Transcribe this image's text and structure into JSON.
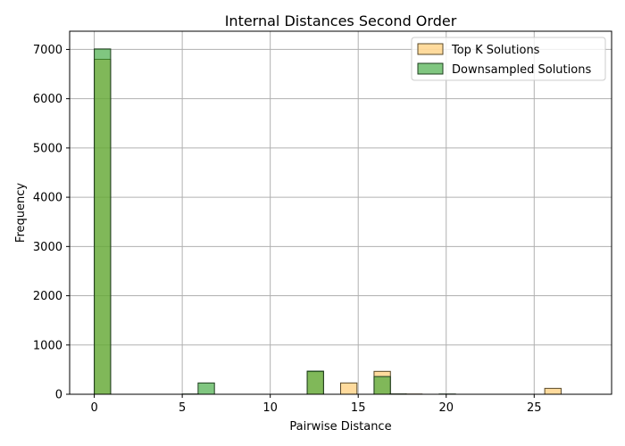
{
  "chart_data": {
    "type": "bar",
    "title": "Internal Distances Second Order",
    "xlabel": "Pairwise Distance",
    "ylabel": "Frequency",
    "xlim": [
      -1.4,
      29.4
    ],
    "ylim": [
      0,
      7370
    ],
    "x_ticks": [
      0,
      5,
      10,
      15,
      20,
      25
    ],
    "y_ticks": [
      0,
      1000,
      2000,
      3000,
      4000,
      5000,
      6000,
      7000
    ],
    "grid": true,
    "legend_position": "top-right",
    "bin_width": 0.93,
    "series": [
      {
        "name": "Top K Solutions",
        "color": "#ffc35c",
        "edge_color": "#5a4a2a",
        "bins": [
          {
            "x0": 0.0,
            "value": 6800
          },
          {
            "x0": 12.1,
            "value": 460
          },
          {
            "x0": 14.0,
            "value": 230
          },
          {
            "x0": 15.9,
            "value": 465
          },
          {
            "x0": 16.8,
            "value": 5
          },
          {
            "x0": 17.7,
            "value": 5
          },
          {
            "x0": 25.6,
            "value": 120
          }
        ]
      },
      {
        "name": "Downsampled Solutions",
        "color": "#2ca02c",
        "edge_color": "#1e3d1e",
        "bins": [
          {
            "x0": 0.0,
            "value": 7010
          },
          {
            "x0": 5.0,
            "value": 5
          },
          {
            "x0": 5.9,
            "value": 230
          },
          {
            "x0": 12.1,
            "value": 470
          },
          {
            "x0": 15.9,
            "value": 360
          },
          {
            "x0": 16.8,
            "value": 5
          },
          {
            "x0": 19.6,
            "value": 5
          }
        ]
      }
    ]
  }
}
